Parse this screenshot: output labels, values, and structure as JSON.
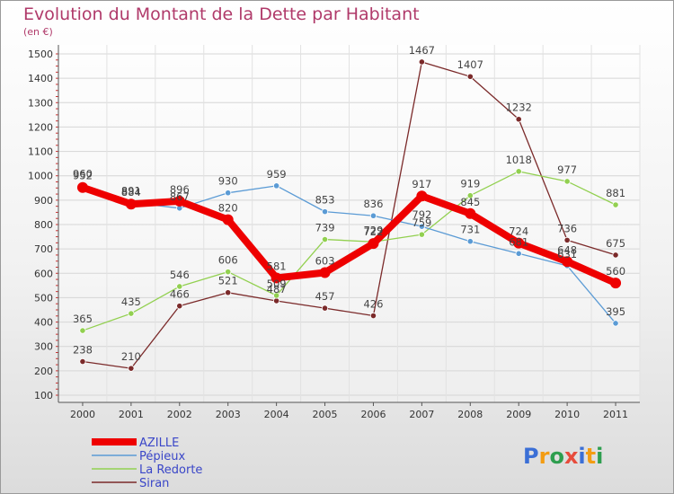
{
  "chart_data": {
    "type": "line",
    "title": "Evolution du Montant de la Dette par Habitant",
    "subtitle": "(en €)",
    "categories": [
      "2000",
      "2001",
      "2002",
      "2003",
      "2004",
      "2005",
      "2006",
      "2007",
      "2008",
      "2009",
      "2010",
      "2011"
    ],
    "y_ticks": [
      100,
      200,
      300,
      400,
      500,
      600,
      700,
      800,
      900,
      1000,
      1100,
      1200,
      1300,
      1400,
      1500
    ],
    "ylim": [
      100,
      1500
    ],
    "grid": true,
    "legend_position": "bottom-left",
    "series": [
      {
        "name": "AZILLE",
        "color": "#ee0000",
        "values": [
          952,
          884,
          896,
          820,
          581,
          603,
          722,
          917,
          845,
          724,
          648,
          560
        ]
      },
      {
        "name": "Pépieux",
        "color": "#5b9bd5",
        "values": [
          960,
          891,
          867,
          930,
          959,
          853,
          836,
          792,
          731,
          681,
          631,
          395
        ]
      },
      {
        "name": "La Redorte",
        "color": "#92d050",
        "values": [
          365,
          435,
          546,
          606,
          509,
          739,
          729,
          759,
          919,
          1018,
          977,
          881
        ]
      },
      {
        "name": "Siran",
        "color": "#7b2a2a",
        "values": [
          238,
          210,
          466,
          521,
          487,
          457,
          426,
          1467,
          1407,
          1232,
          736,
          675
        ]
      }
    ]
  },
  "logo": {
    "text": "Proxiti",
    "letters": [
      "P",
      "r",
      "o",
      "x",
      "i",
      "t",
      "i"
    ],
    "colors": [
      "#3b6fd6",
      "#f39c12",
      "#2e9e4f",
      "#e74c3c",
      "#3b6fd6",
      "#f39c12",
      "#2e9e4f"
    ]
  }
}
